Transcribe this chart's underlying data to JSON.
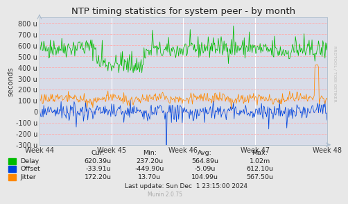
{
  "title": "NTP timing statistics for system peer - by month",
  "ylabel": "seconds",
  "fig_bg_color": "#e8e8e8",
  "plot_bg_color": "#d8dce8",
  "hgrid_color": "#ffaaaa",
  "vgrid_color": "#ffffff",
  "ylim": [
    -300,
    850
  ],
  "yticks": [
    -300,
    -200,
    -100,
    0,
    100,
    200,
    300,
    400,
    500,
    600,
    700,
    800
  ],
  "ytick_labels": [
    "-300 u",
    "-200 u",
    "-100 u",
    "0",
    "100 u",
    "200 u",
    "300 u",
    "400 u",
    "500 u",
    "600 u",
    "700 u",
    "800 u"
  ],
  "xtick_labels": [
    "Week 44",
    "Week 45",
    "Week 46",
    "Week 47",
    "Week 48"
  ],
  "delay_color": "#00bb00",
  "offset_color": "#0044dd",
  "jitter_color": "#ff8800",
  "legend_items": [
    "Delay",
    "Offset",
    "Jitter"
  ],
  "stats_header": [
    "Cur:",
    "Min:",
    "Avg:",
    "Max:"
  ],
  "delay_stats": [
    "620.39u",
    "237.20u",
    "564.89u",
    "1.02m"
  ],
  "offset_stats": [
    "-33.91u",
    "-449.90u",
    "-5.09u",
    "612.10u"
  ],
  "jitter_stats": [
    "172.20u",
    "13.70u",
    "104.99u",
    "567.50u"
  ],
  "last_update": "Last update: Sun Dec  1 23:15:00 2024",
  "munin_version": "Munin 2.0.75",
  "watermark": "RRDTOOL / TOBI OETIKER",
  "n_points": 400
}
